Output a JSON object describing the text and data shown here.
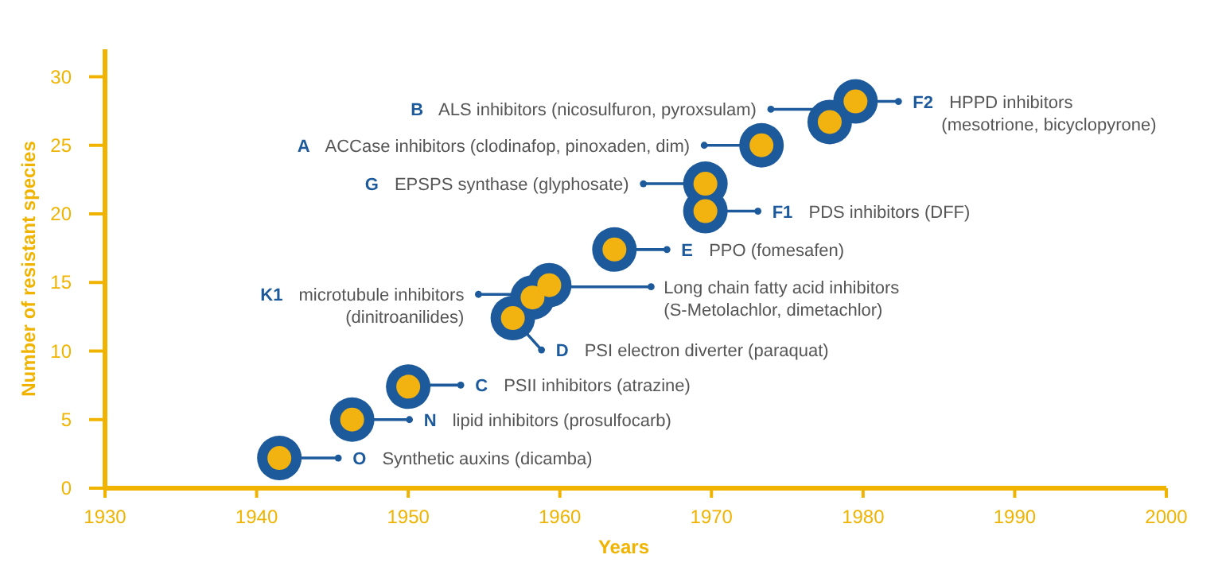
{
  "chart_data": {
    "type": "scatter",
    "xlabel": "Years",
    "ylabel": "Number of resistant species",
    "xlim": [
      1930,
      2000
    ],
    "ylim": [
      0,
      32
    ],
    "xticks": [
      1930,
      1940,
      1950,
      1960,
      1970,
      1980,
      1990,
      2000
    ],
    "yticks": [
      0,
      5,
      10,
      15,
      20,
      25,
      30
    ],
    "grid": false,
    "marker": "circle",
    "series": [
      {
        "color": "#f2b20f",
        "x": [
          1941.5,
          1946.3,
          1950,
          1956.9,
          1958.2,
          1959.3,
          1963.6,
          1969.6,
          1969.6,
          1973.3,
          1977.8,
          1979.5
        ],
        "values": [
          2.2,
          5,
          7.4,
          12.4,
          13.9,
          14.8,
          17.4,
          20.2,
          22.2,
          25,
          26.7,
          28.2
        ]
      }
    ],
    "annotations": [
      {
        "text": "O Synthetic auxins (dicamba)",
        "x": 1941.5,
        "y": 2.2
      },
      {
        "text": "N lipid inhibitors (prosulfocarb)",
        "x": 1946.3,
        "y": 5
      },
      {
        "text": "C PSII inhibitors (atrazine)",
        "x": 1950,
        "y": 7.4
      },
      {
        "text": "D PSI electron diverter (paraquat)",
        "x": 1956.9,
        "y": 12.4
      },
      {
        "text": "K1 microtubule inhibitors (dinitroanilides)",
        "x": 1958.2,
        "y": 13.9
      },
      {
        "text": "Long chain fatty acid inhibitors (S-Metolachlor, dimetachlor)",
        "x": 1959.3,
        "y": 14.8
      },
      {
        "text": "E PPO (fomesafen)",
        "x": 1963.6,
        "y": 17.4
      },
      {
        "text": "F1 PDS inhibitors (DFF)",
        "x": 1969.6,
        "y": 20.2
      },
      {
        "text": "G EPSPS synthase (glyphosate)",
        "x": 1969.6,
        "y": 22.2
      },
      {
        "text": "A ACCase inhibitors (clodinafop, pinoxaden, dim)",
        "x": 1973.3,
        "y": 25
      },
      {
        "text": "B ALS inhibitors (nicosulfuron, pyroxsulam)",
        "x": 1977.8,
        "y": 26.7
      },
      {
        "text": "F2 HPPD inhibitors (mesotrione, bicyclopyrone)",
        "x": 1979.5,
        "y": 28.2
      }
    ]
  }
}
